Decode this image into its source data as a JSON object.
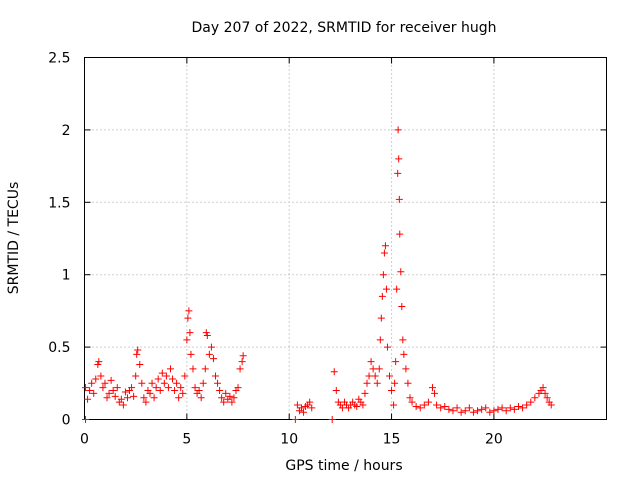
{
  "chart_data": {
    "type": "scatter",
    "title": "Day 207 of 2022, SRMTID for receiver hugh",
    "xlabel": "GPS time / hours",
    "ylabel": "SRMTID / TECUs",
    "xlim": [
      0,
      25.5
    ],
    "ylim": [
      0,
      2.5
    ],
    "xticks": [
      0,
      5,
      10,
      15,
      20
    ],
    "xtick_labels": [
      "0",
      "5",
      "10",
      "15",
      "20"
    ],
    "yticks": [
      0,
      0.5,
      1,
      1.5,
      2,
      2.5
    ],
    "ytick_labels": [
      "0",
      "0.5",
      "1",
      "1.5",
      "2",
      "2.5"
    ],
    "grid": true,
    "marker": "+",
    "series": [
      {
        "name": "SRMTID",
        "color": "#ff0000",
        "points": [
          [
            0.05,
            0.0
          ],
          [
            0.05,
            0.22
          ],
          [
            0.15,
            0.14
          ],
          [
            0.25,
            0.2
          ],
          [
            0.35,
            0.25
          ],
          [
            0.45,
            0.18
          ],
          [
            0.55,
            0.28
          ],
          [
            0.65,
            0.38
          ],
          [
            0.7,
            0.4
          ],
          [
            0.8,
            0.3
          ],
          [
            0.9,
            0.22
          ],
          [
            1.0,
            0.25
          ],
          [
            1.1,
            0.15
          ],
          [
            1.2,
            0.18
          ],
          [
            1.3,
            0.27
          ],
          [
            1.4,
            0.2
          ],
          [
            1.5,
            0.16
          ],
          [
            1.6,
            0.22
          ],
          [
            1.7,
            0.12
          ],
          [
            1.8,
            0.14
          ],
          [
            1.9,
            0.1
          ],
          [
            2.0,
            0.19
          ],
          [
            2.1,
            0.15
          ],
          [
            2.2,
            0.2
          ],
          [
            2.3,
            0.22
          ],
          [
            2.4,
            0.16
          ],
          [
            2.5,
            0.3
          ],
          [
            2.55,
            0.45
          ],
          [
            2.6,
            0.48
          ],
          [
            2.7,
            0.38
          ],
          [
            2.8,
            0.25
          ],
          [
            2.9,
            0.15
          ],
          [
            3.0,
            0.12
          ],
          [
            3.1,
            0.2
          ],
          [
            3.2,
            0.18
          ],
          [
            3.3,
            0.25
          ],
          [
            3.4,
            0.15
          ],
          [
            3.5,
            0.22
          ],
          [
            3.6,
            0.28
          ],
          [
            3.7,
            0.2
          ],
          [
            3.8,
            0.32
          ],
          [
            3.9,
            0.25
          ],
          [
            4.0,
            0.3
          ],
          [
            4.1,
            0.22
          ],
          [
            4.2,
            0.35
          ],
          [
            4.3,
            0.28
          ],
          [
            4.4,
            0.2
          ],
          [
            4.5,
            0.25
          ],
          [
            4.6,
            0.15
          ],
          [
            4.7,
            0.22
          ],
          [
            4.8,
            0.18
          ],
          [
            4.9,
            0.3
          ],
          [
            5.0,
            0.55
          ],
          [
            5.05,
            0.7
          ],
          [
            5.1,
            0.75
          ],
          [
            5.15,
            0.6
          ],
          [
            5.2,
            0.45
          ],
          [
            5.3,
            0.35
          ],
          [
            5.4,
            0.22
          ],
          [
            5.5,
            0.18
          ],
          [
            5.6,
            0.2
          ],
          [
            5.7,
            0.15
          ],
          [
            5.8,
            0.25
          ],
          [
            5.9,
            0.35
          ],
          [
            5.95,
            0.6
          ],
          [
            6.0,
            0.58
          ],
          [
            6.1,
            0.45
          ],
          [
            6.2,
            0.5
          ],
          [
            6.3,
            0.42
          ],
          [
            6.4,
            0.3
          ],
          [
            6.5,
            0.25
          ],
          [
            6.6,
            0.2
          ],
          [
            6.7,
            0.15
          ],
          [
            6.8,
            0.12
          ],
          [
            6.9,
            0.18
          ],
          [
            7.0,
            0.14
          ],
          [
            7.1,
            0.16
          ],
          [
            7.2,
            0.12
          ],
          [
            7.3,
            0.15
          ],
          [
            7.4,
            0.2
          ],
          [
            7.5,
            0.22
          ],
          [
            7.6,
            0.35
          ],
          [
            7.7,
            0.4
          ],
          [
            7.75,
            0.44
          ],
          [
            10.3,
            0.0
          ],
          [
            10.4,
            0.1
          ],
          [
            10.5,
            0.06
          ],
          [
            10.6,
            0.08
          ],
          [
            10.7,
            0.05
          ],
          [
            10.8,
            0.09
          ],
          [
            10.9,
            0.1
          ],
          [
            11.0,
            0.12
          ],
          [
            11.1,
            0.08
          ],
          [
            12.1,
            0.0
          ],
          [
            12.2,
            0.33
          ],
          [
            12.3,
            0.2
          ],
          [
            12.4,
            0.12
          ],
          [
            12.5,
            0.1
          ],
          [
            12.6,
            0.08
          ],
          [
            12.7,
            0.12
          ],
          [
            12.8,
            0.1
          ],
          [
            12.9,
            0.08
          ],
          [
            13.0,
            0.1
          ],
          [
            13.1,
            0.12
          ],
          [
            13.2,
            0.1
          ],
          [
            13.3,
            0.09
          ],
          [
            13.4,
            0.14
          ],
          [
            13.5,
            0.12
          ],
          [
            13.6,
            0.1
          ],
          [
            13.7,
            0.18
          ],
          [
            13.8,
            0.25
          ],
          [
            13.9,
            0.3
          ],
          [
            14.0,
            0.4
          ],
          [
            14.1,
            0.35
          ],
          [
            14.2,
            0.3
          ],
          [
            14.3,
            0.25
          ],
          [
            14.4,
            0.35
          ],
          [
            14.45,
            0.55
          ],
          [
            14.5,
            0.7
          ],
          [
            14.55,
            0.85
          ],
          [
            14.6,
            1.0
          ],
          [
            14.65,
            1.15
          ],
          [
            14.7,
            1.2
          ],
          [
            14.75,
            0.9
          ],
          [
            14.8,
            0.5
          ],
          [
            14.9,
            0.3
          ],
          [
            15.0,
            0.2
          ],
          [
            15.1,
            0.1
          ],
          [
            15.15,
            0.25
          ],
          [
            15.2,
            0.4
          ],
          [
            15.25,
            0.9
          ],
          [
            15.3,
            1.7
          ],
          [
            15.32,
            2.0
          ],
          [
            15.35,
            1.8
          ],
          [
            15.38,
            1.52
          ],
          [
            15.4,
            1.28
          ],
          [
            15.45,
            1.02
          ],
          [
            15.5,
            0.78
          ],
          [
            15.55,
            0.55
          ],
          [
            15.6,
            0.45
          ],
          [
            15.7,
            0.35
          ],
          [
            15.8,
            0.25
          ],
          [
            15.9,
            0.15
          ],
          [
            16.0,
            0.12
          ],
          [
            16.2,
            0.09
          ],
          [
            16.4,
            0.08
          ],
          [
            16.6,
            0.1
          ],
          [
            16.8,
            0.12
          ],
          [
            17.0,
            0.22
          ],
          [
            17.1,
            0.18
          ],
          [
            17.2,
            0.1
          ],
          [
            17.4,
            0.08
          ],
          [
            17.6,
            0.09
          ],
          [
            17.8,
            0.07
          ],
          [
            18.0,
            0.06
          ],
          [
            18.2,
            0.08
          ],
          [
            18.4,
            0.05
          ],
          [
            18.6,
            0.06
          ],
          [
            18.8,
            0.08
          ],
          [
            19.0,
            0.05
          ],
          [
            19.2,
            0.06
          ],
          [
            19.4,
            0.07
          ],
          [
            19.6,
            0.08
          ],
          [
            19.8,
            0.05
          ],
          [
            20.0,
            0.06
          ],
          [
            20.2,
            0.07
          ],
          [
            20.4,
            0.08
          ],
          [
            20.6,
            0.06
          ],
          [
            20.8,
            0.08
          ],
          [
            21.0,
            0.07
          ],
          [
            21.2,
            0.09
          ],
          [
            21.4,
            0.08
          ],
          [
            21.6,
            0.1
          ],
          [
            21.8,
            0.12
          ],
          [
            22.0,
            0.15
          ],
          [
            22.2,
            0.18
          ],
          [
            22.3,
            0.2
          ],
          [
            22.4,
            0.22
          ],
          [
            22.5,
            0.18
          ],
          [
            22.6,
            0.15
          ],
          [
            22.7,
            0.12
          ],
          [
            22.8,
            0.1
          ]
        ]
      }
    ]
  }
}
